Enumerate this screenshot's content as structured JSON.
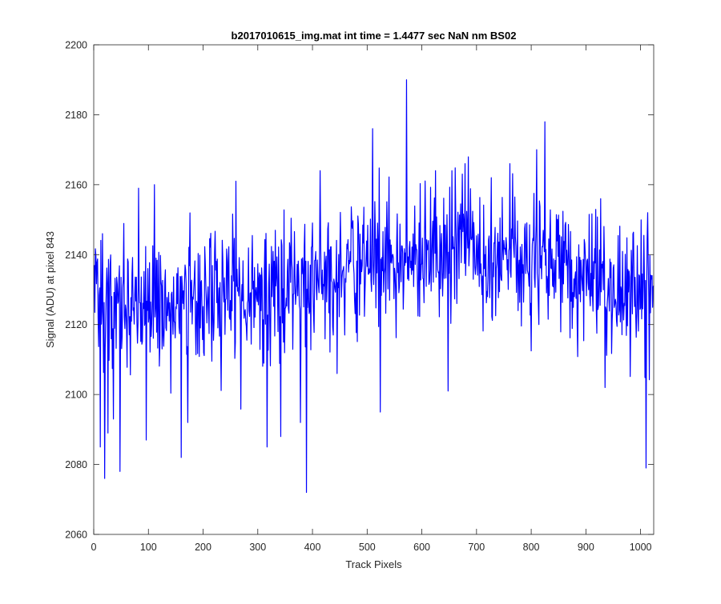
{
  "figure": {
    "background": "#ffffff",
    "axes_color": "#262626"
  },
  "chart_data": {
    "type": "line",
    "title": "b2017010615_img.mat int time = 1.4477 sec  NaN nm BS02",
    "xlabel": "Track Pixels",
    "ylabel": "Signal (ADU) at pixel 843",
    "xlim": [
      0,
      1024
    ],
    "ylim": [
      2060,
      2200
    ],
    "xticks": [
      0,
      100,
      200,
      300,
      400,
      500,
      600,
      700,
      800,
      900,
      1000
    ],
    "xtick_labels": [
      "0",
      "100",
      "200",
      "300",
      "400",
      "500",
      "600",
      "700",
      "800",
      "900",
      "1000"
    ],
    "yticks": [
      2060,
      2080,
      2100,
      2120,
      2140,
      2160,
      2180,
      2200
    ],
    "ytick_labels": [
      "2060",
      "2080",
      "2100",
      "2120",
      "2140",
      "2160",
      "2180",
      "2200"
    ],
    "grid": false,
    "box": true,
    "legend": "none",
    "series": [
      {
        "color": "#0000ff",
        "n_points": 1024,
        "x_start": 1,
        "x_step": 1,
        "noise_model": {
          "baseline_segments": [
            [
              1,
              2124
            ],
            [
              400,
              2130
            ],
            [
              500,
              2138
            ],
            [
              700,
              2141
            ],
            [
              850,
              2136
            ],
            [
              1024,
              2128
            ]
          ],
          "std_dev": 9.5,
          "seed": 843,
          "clip": [
            2062,
            2196
          ]
        },
        "distinct_points": [
          [
            1,
            2137
          ],
          [
            12,
            2085
          ],
          [
            16,
            2146
          ],
          [
            20,
            2076
          ],
          [
            26,
            2089
          ],
          [
            36,
            2093
          ],
          [
            48,
            2078
          ],
          [
            82,
            2159
          ],
          [
            96,
            2087
          ],
          [
            111,
            2160
          ],
          [
            160,
            2082
          ],
          [
            172,
            2092
          ],
          [
            260,
            2161
          ],
          [
            317,
            2085
          ],
          [
            342,
            2088
          ],
          [
            378,
            2092
          ],
          [
            389,
            2072
          ],
          [
            414,
            2164
          ],
          [
            445,
            2106
          ],
          [
            510,
            2176
          ],
          [
            524,
            2095
          ],
          [
            572,
            2190
          ],
          [
            625,
            2164
          ],
          [
            648,
            2101
          ],
          [
            655,
            2164
          ],
          [
            679,
            2166
          ],
          [
            727,
            2162
          ],
          [
            761,
            2166
          ],
          [
            810,
            2170
          ],
          [
            825,
            2178
          ],
          [
            927,
            2156
          ],
          [
            935,
            2102
          ],
          [
            1010,
            2079
          ],
          [
            1013,
            2152
          ],
          [
            1020,
            2133
          ]
        ]
      }
    ]
  }
}
